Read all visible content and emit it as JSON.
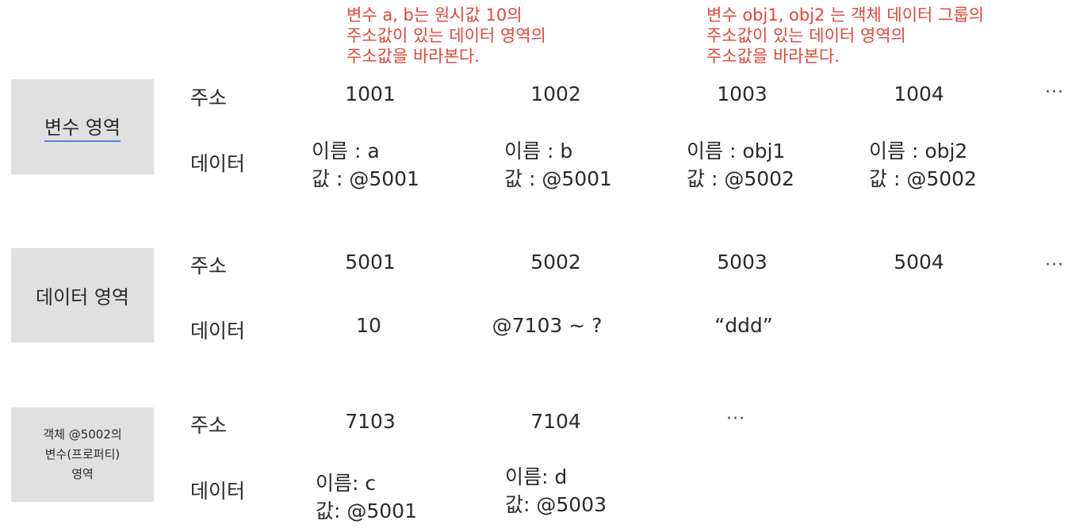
{
  "notes": {
    "left": [
      "변수 a, b는 원시값 10의",
      "주소값이 있는 데이터 영역의",
      "주소값을 바라본다."
    ],
    "right": [
      "변수 obj1, obj2 는 객체 데이터 그룹의",
      "주소값이 있는 데이터 영역의",
      "주소값을 바라본다."
    ]
  },
  "labels": {
    "address": "주소",
    "data": "데이터"
  },
  "ellipsis": "···",
  "variable_region": {
    "title": "변수 영역",
    "addresses": [
      "1001",
      "1002",
      "1003",
      "1004"
    ],
    "cells": [
      {
        "name": "이름 : a",
        "value": "값 : @5001"
      },
      {
        "name": "이름 : b",
        "value": "값 : @5001"
      },
      {
        "name": "이름 : obj1",
        "value": "값 : @5002"
      },
      {
        "name": "이름 : obj2",
        "value": "값 : @5002"
      }
    ]
  },
  "data_region": {
    "title": "데이터 영역",
    "addresses": [
      "5001",
      "5002",
      "5003",
      "5004"
    ],
    "values": [
      "10",
      "@7103 ~ ?",
      "“ddd”"
    ]
  },
  "object_region": {
    "title_lines": [
      "객체 @5002의",
      "변수(프로퍼티)",
      "영역"
    ],
    "addresses": [
      "7103",
      "7104"
    ],
    "cells": [
      {
        "name": "이름: c",
        "value": "값: @5001"
      },
      {
        "name": "이름: d",
        "value": "값: @5003"
      }
    ]
  }
}
